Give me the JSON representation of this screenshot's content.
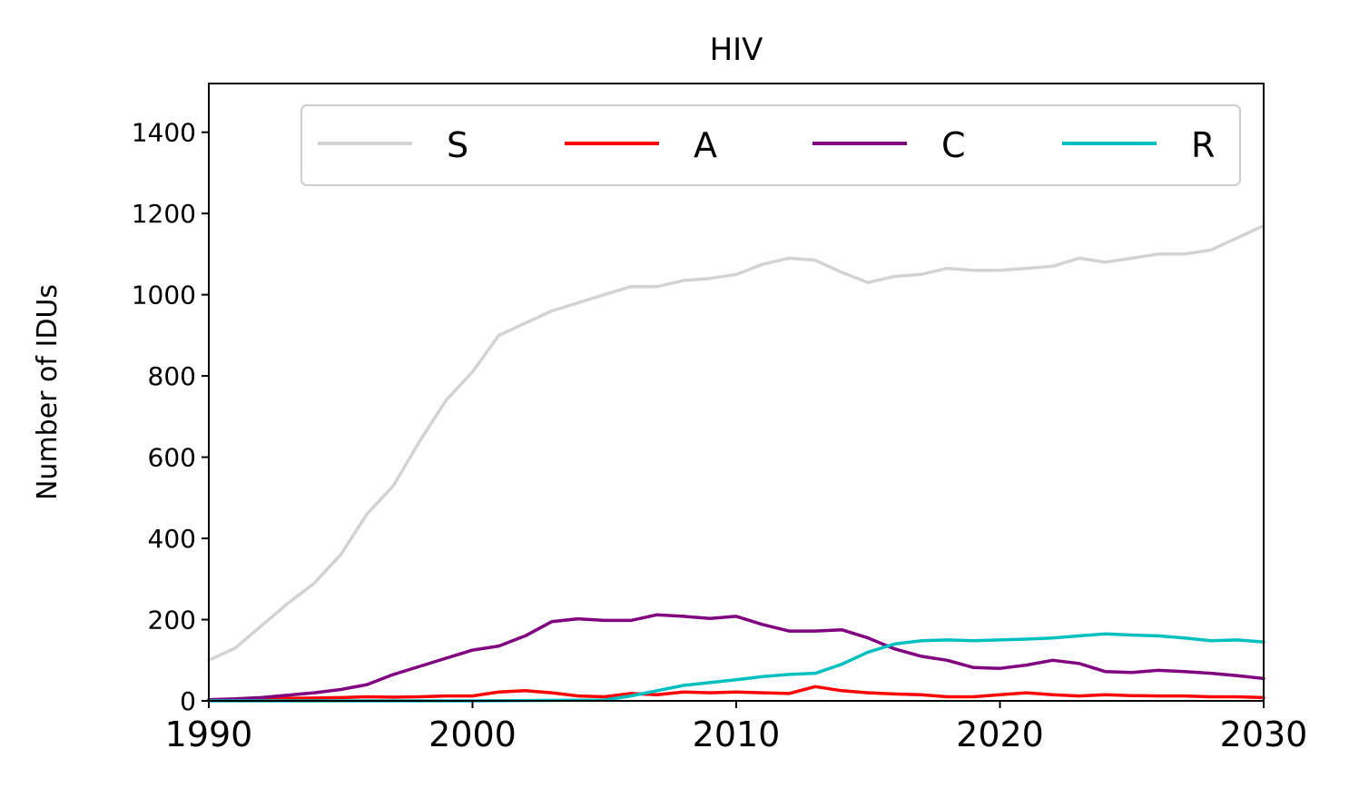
{
  "chart_data": {
    "type": "line",
    "title": "HIV",
    "xlabel": "",
    "ylabel": "Number of IDUs",
    "xlim": [
      1990,
      2030
    ],
    "ylim": [
      0,
      1520
    ],
    "xticks": [
      1990,
      2000,
      2010,
      2020,
      2030
    ],
    "yticks": [
      0,
      200,
      400,
      600,
      800,
      1000,
      1200,
      1400
    ],
    "grid": false,
    "legend_position": "top-right",
    "legend_columns": 4,
    "series": [
      {
        "name": "S",
        "color": "#d3d3d3",
        "x": [
          1990,
          1991,
          1992,
          1993,
          1994,
          1995,
          1996,
          1997,
          1998,
          1999,
          2000,
          2001,
          2002,
          2003,
          2004,
          2005,
          2006,
          2007,
          2008,
          2009,
          2010,
          2011,
          2012,
          2013,
          2014,
          2015,
          2016,
          2017,
          2018,
          2019,
          2020,
          2021,
          2022,
          2023,
          2024,
          2025,
          2026,
          2027,
          2028,
          2029,
          2030
        ],
        "y": [
          100,
          130,
          185,
          240,
          290,
          360,
          460,
          530,
          640,
          740,
          810,
          900,
          930,
          960,
          980,
          1000,
          1020,
          1020,
          1035,
          1040,
          1050,
          1075,
          1090,
          1085,
          1055,
          1030,
          1045,
          1050,
          1065,
          1060,
          1060,
          1065,
          1070,
          1090,
          1080,
          1090,
          1100,
          1100,
          1110,
          1140,
          1170
        ]
      },
      {
        "name": "A",
        "color": "#ff0000",
        "x": [
          1990,
          1991,
          1992,
          1993,
          1994,
          1995,
          1996,
          1997,
          1998,
          1999,
          2000,
          2001,
          2002,
          2003,
          2004,
          2005,
          2006,
          2007,
          2008,
          2009,
          2010,
          2011,
          2012,
          2013,
          2014,
          2015,
          2016,
          2017,
          2018,
          2019,
          2020,
          2021,
          2022,
          2023,
          2024,
          2025,
          2026,
          2027,
          2028,
          2029,
          2030
        ],
        "y": [
          3,
          4,
          5,
          6,
          7,
          8,
          10,
          9,
          10,
          12,
          12,
          22,
          25,
          20,
          12,
          10,
          18,
          15,
          22,
          20,
          22,
          20,
          18,
          35,
          25,
          20,
          17,
          15,
          10,
          10,
          15,
          20,
          15,
          12,
          15,
          13,
          12,
          12,
          10,
          10,
          8
        ]
      },
      {
        "name": "C",
        "color": "#800080",
        "x": [
          1990,
          1991,
          1992,
          1993,
          1994,
          1995,
          1996,
          1997,
          1998,
          1999,
          2000,
          2001,
          2002,
          2003,
          2004,
          2005,
          2006,
          2007,
          2008,
          2009,
          2010,
          2011,
          2012,
          2013,
          2014,
          2015,
          2016,
          2017,
          2018,
          2019,
          2020,
          2021,
          2022,
          2023,
          2024,
          2025,
          2026,
          2027,
          2028,
          2029,
          2030
        ],
        "y": [
          3,
          5,
          8,
          14,
          20,
          28,
          40,
          65,
          85,
          105,
          125,
          135,
          160,
          195,
          202,
          198,
          198,
          212,
          208,
          203,
          208,
          188,
          172,
          172,
          175,
          155,
          128,
          110,
          100,
          82,
          80,
          88,
          100,
          92,
          72,
          70,
          75,
          72,
          68,
          62,
          55
        ]
      },
      {
        "name": "R",
        "color": "#00bfbf",
        "x": [
          1990,
          1995,
          2000,
          2005,
          2006,
          2007,
          2008,
          2009,
          2010,
          2011,
          2012,
          2013,
          2014,
          2015,
          2016,
          2017,
          2018,
          2019,
          2020,
          2021,
          2022,
          2023,
          2024,
          2025,
          2026,
          2027,
          2028,
          2029,
          2030
        ],
        "y": [
          0,
          0,
          0,
          2,
          12,
          25,
          38,
          45,
          52,
          60,
          65,
          68,
          90,
          120,
          140,
          148,
          150,
          148,
          150,
          152,
          155,
          160,
          165,
          162,
          160,
          155,
          148,
          150,
          145
        ]
      }
    ]
  }
}
